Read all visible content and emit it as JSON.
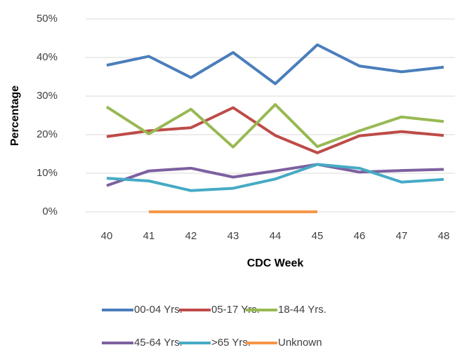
{
  "chart_data": {
    "type": "line",
    "x_label": "CDC Week",
    "y_label": "Percentage",
    "categories": [
      "40",
      "41",
      "42",
      "43",
      "44",
      "45",
      "46",
      "47",
      "48"
    ],
    "series": [
      {
        "name": "00-04 Yrs.",
        "color": "#4a7ebb",
        "values": [
          38,
          40.3,
          34.8,
          41.3,
          33.2,
          43.3,
          37.8,
          36.3,
          37.5
        ]
      },
      {
        "name": "05-17 Yrs.",
        "color": "#be4b48",
        "values": [
          19.5,
          21,
          21.8,
          27,
          19.8,
          15.3,
          19.7,
          20.8,
          19.8
        ]
      },
      {
        "name": "18-44 Yrs.",
        "color": "#98b954",
        "values": [
          27.2,
          20.2,
          26.6,
          16.8,
          27.8,
          16.9,
          21,
          24.6,
          23.4
        ]
      },
      {
        "name": "45-64 Yrs.",
        "color": "#7d60a0",
        "values": [
          6.8,
          10.6,
          11.3,
          9,
          10.6,
          12.3,
          10.3,
          10.7,
          11
        ]
      },
      {
        "name": ">65 Yrs.",
        "color": "#46aac5",
        "values": [
          8.7,
          8,
          5.5,
          6.1,
          8.5,
          12.3,
          11.3,
          7.7,
          8.4
        ]
      },
      {
        "name": "Unknown",
        "color": "#f79646",
        "values": [
          null,
          0,
          0,
          0,
          0,
          0,
          null,
          null,
          null
        ]
      }
    ],
    "ylim": [
      0,
      50
    ],
    "yticks": [
      {
        "value": 0,
        "label": "0%"
      },
      {
        "value": 10,
        "label": "10%"
      },
      {
        "value": 20,
        "label": "20%"
      },
      {
        "value": 30,
        "label": "30%"
      },
      {
        "value": 40,
        "label": "40%"
      },
      {
        "value": 50,
        "label": "50%"
      }
    ],
    "grid": true,
    "legend": "bottom"
  }
}
